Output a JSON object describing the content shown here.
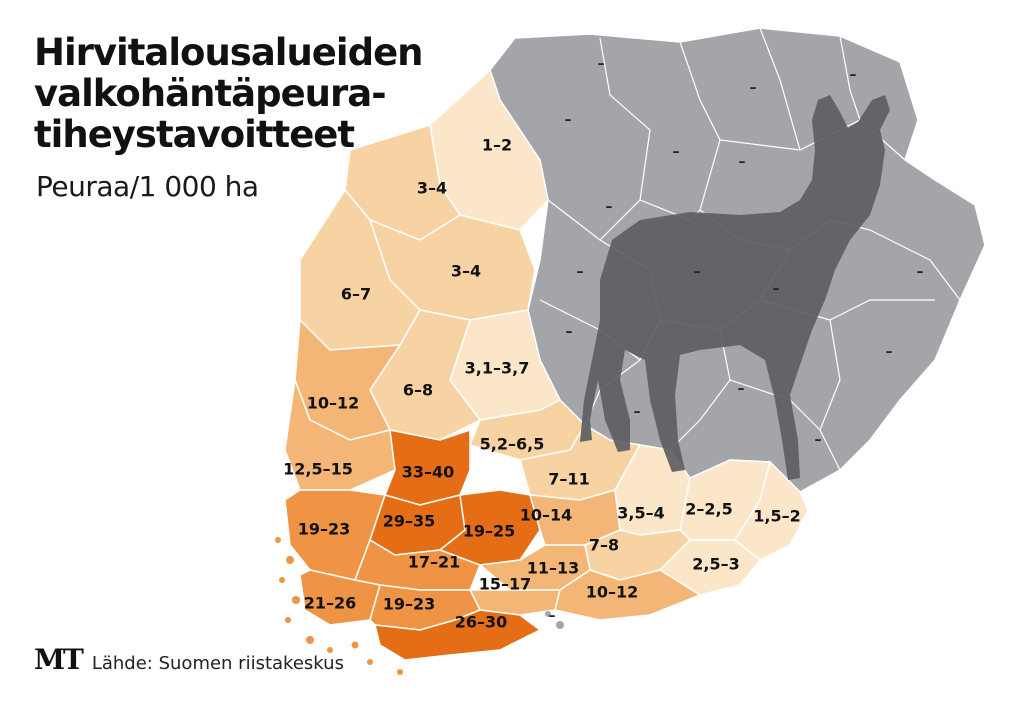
{
  "title_lines": [
    "Hirvitalousalueiden",
    "valkohäntäpeura-",
    "tiheystavoitteet"
  ],
  "subtitle": "Peuraa/1 000 ha",
  "logo": "MT",
  "source": "Lähde: Suomen riistakeskus",
  "colors": {
    "gray_area": "#a3a5a8",
    "deer_silhouette": "#5c5e62",
    "borders": "#ffffff",
    "level_1": "#fbe6c9",
    "level_2": "#f7d3a4",
    "level_3": "#f3b677",
    "level_4": "#ee9444",
    "level_5": "#e56d16"
  },
  "regions": [
    {
      "id": "r1",
      "label": "1–2",
      "level": 1
    },
    {
      "id": "r2",
      "label": "3–4",
      "level": 2
    },
    {
      "id": "r3",
      "label": "3–4",
      "level": 2
    },
    {
      "id": "r4",
      "label": "6–7",
      "level": 2
    },
    {
      "id": "r5",
      "label": "3,1–3,7",
      "level": 1
    },
    {
      "id": "r6",
      "label": "6–8",
      "level": 2
    },
    {
      "id": "r7",
      "label": "10–12",
      "level": 3
    },
    {
      "id": "r8",
      "label": "5,2–6,5",
      "level": 2
    },
    {
      "id": "r9",
      "label": "12,5–15",
      "level": 3
    },
    {
      "id": "r10",
      "label": "33–40",
      "level": 5
    },
    {
      "id": "r11",
      "label": "7–11",
      "level": 2
    },
    {
      "id": "r12",
      "label": "19–23",
      "level": 4
    },
    {
      "id": "r13",
      "label": "29–35",
      "level": 5
    },
    {
      "id": "r14",
      "label": "19–25",
      "level": 5
    },
    {
      "id": "r15",
      "label": "10–14",
      "level": 3
    },
    {
      "id": "r16",
      "label": "3,5–4",
      "level": 1
    },
    {
      "id": "r17",
      "label": "2–2,5",
      "level": 1
    },
    {
      "id": "r18",
      "label": "1,5–2",
      "level": 1
    },
    {
      "id": "r19",
      "label": "7–8",
      "level": 2
    },
    {
      "id": "r20",
      "label": "17–21",
      "level": 4
    },
    {
      "id": "r21",
      "label": "11–13",
      "level": 3
    },
    {
      "id": "r22",
      "label": "2,5–3",
      "level": 1
    },
    {
      "id": "r23",
      "label": "15–17",
      "level": 3
    },
    {
      "id": "r24",
      "label": "21–26",
      "level": 4
    },
    {
      "id": "r25",
      "label": "19–23",
      "level": 4
    },
    {
      "id": "r26",
      "label": "10–12",
      "level": 3
    },
    {
      "id": "r27",
      "label": "26–30",
      "level": 5
    }
  ],
  "no_target_label": "–",
  "no_target_count": 15
}
